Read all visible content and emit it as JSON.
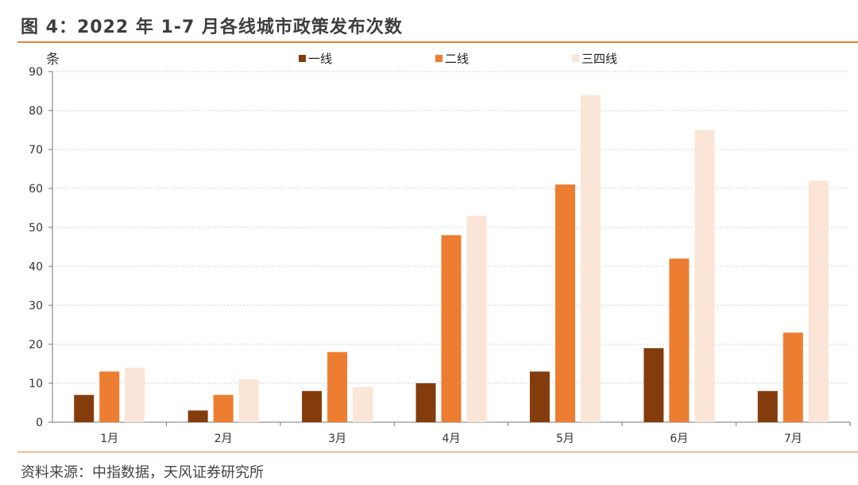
{
  "figure": {
    "title": "图 4：2022 年 1-7 月各线城市政策发布次数",
    "source": "资料来源：中指数据，天风证券研究所"
  },
  "chart_data": {
    "type": "bar",
    "categories": [
      "1月",
      "2月",
      "3月",
      "4月",
      "5月",
      "6月",
      "7月"
    ],
    "series": [
      {
        "name": "一线",
        "color": "#843c0c",
        "values": [
          7,
          3,
          8,
          10,
          13,
          19,
          8
        ]
      },
      {
        "name": "二线",
        "color": "#ed7d31",
        "values": [
          13,
          7,
          18,
          48,
          61,
          42,
          23
        ]
      },
      {
        "name": "三四线",
        "color": "#fbe5d6",
        "values": [
          14,
          11,
          9,
          53,
          84,
          75,
          62
        ]
      }
    ],
    "ylabel": "条",
    "ylim": [
      0,
      90
    ],
    "yticks": [
      0,
      10,
      20,
      30,
      40,
      50,
      60,
      70,
      80,
      90
    ],
    "grid": true,
    "legend_position": "top-center"
  }
}
